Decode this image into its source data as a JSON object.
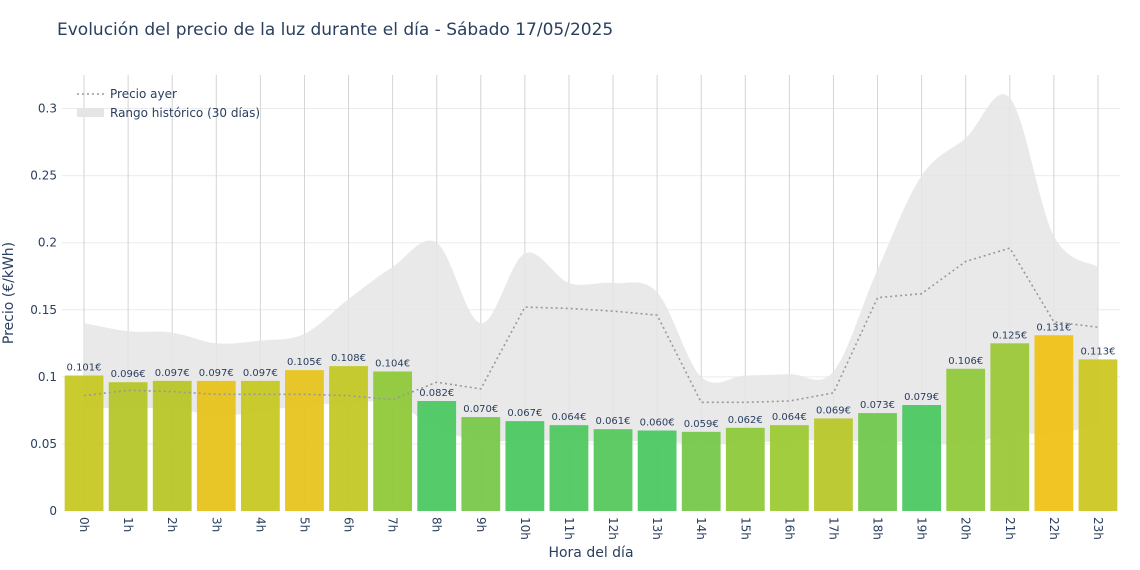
{
  "chart_data": {
    "type": "bar",
    "title": "Evolución del precio de la luz durante el día - Sábado 17/05/2025",
    "xlabel": "Hora del día",
    "ylabel": "Precio (€/kWh)",
    "ylim": [
      0,
      0.325
    ],
    "yticks": [
      0,
      0.05,
      0.1,
      0.15,
      0.2,
      0.25,
      0.3
    ],
    "ytick_labels": [
      "0",
      "0.05",
      "0.1",
      "0.15",
      "0.2",
      "0.25",
      "0.3"
    ],
    "grid": true,
    "legend_position": "top-left",
    "categories": [
      "0h",
      "1h",
      "2h",
      "3h",
      "4h",
      "5h",
      "6h",
      "7h",
      "8h",
      "9h",
      "10h",
      "11h",
      "12h",
      "13h",
      "14h",
      "15h",
      "16h",
      "17h",
      "18h",
      "19h",
      "20h",
      "21h",
      "22h",
      "23h"
    ],
    "series": [
      {
        "type": "bar",
        "values": [
          0.101,
          0.096,
          0.097,
          0.097,
          0.097,
          0.105,
          0.108,
          0.104,
          0.082,
          0.07,
          0.067,
          0.064,
          0.061,
          0.06,
          0.059,
          0.062,
          0.064,
          0.069,
          0.073,
          0.079,
          0.106,
          0.125,
          0.131,
          0.113
        ],
        "labels": [
          "0.101€",
          "0.096€",
          "0.097€",
          "0.097€",
          "0.097€",
          "0.105€",
          "0.108€",
          "0.104€",
          "0.082€",
          "0.070€",
          "0.067€",
          "0.064€",
          "0.061€",
          "0.060€",
          "0.059€",
          "0.062€",
          "0.064€",
          "0.069€",
          "0.073€",
          "0.079€",
          "0.106€",
          "0.125€",
          "0.131€",
          "0.113€"
        ],
        "colors": [
          "#c6c824",
          "#b4c62a",
          "#b8c628",
          "#e8c31c",
          "#c6c824",
          "#e6c41e",
          "#c2c826",
          "#90c93a",
          "#4cc862",
          "#78c84a",
          "#4cc862",
          "#50c860",
          "#56c85c",
          "#4cc862",
          "#76c84c",
          "#8ec93c",
          "#9cca34",
          "#b8c72a",
          "#72c84e",
          "#4cc862",
          "#90c93c",
          "#9cc838",
          "#f0c218",
          "#ccc824"
        ]
      },
      {
        "name": "Precio ayer",
        "type": "line",
        "color": "#999999",
        "values": [
          0.086,
          0.09,
          0.089,
          0.087,
          0.087,
          0.087,
          0.086,
          0.083,
          0.096,
          0.091,
          0.152,
          0.151,
          0.149,
          0.146,
          0.081,
          0.081,
          0.082,
          0.088,
          0.159,
          0.162,
          0.186,
          0.196,
          0.141,
          0.137
        ]
      },
      {
        "name": "Rango histórico (30 días)",
        "type": "area",
        "color": "#e5e5e5",
        "upper": [
          0.14,
          0.134,
          0.133,
          0.125,
          0.127,
          0.132,
          0.158,
          0.182,
          0.2,
          0.14,
          0.192,
          0.17,
          0.17,
          0.163,
          0.1,
          0.101,
          0.102,
          0.104,
          0.18,
          0.25,
          0.278,
          0.308,
          0.205,
          0.182
        ],
        "lower": [
          0.078,
          0.076,
          0.077,
          0.071,
          0.074,
          0.079,
          0.08,
          0.081,
          0.062,
          0.052,
          0.053,
          0.052,
          0.052,
          0.052,
          0.05,
          0.051,
          0.052,
          0.053,
          0.051,
          0.052,
          0.049,
          0.058,
          0.057,
          0.065
        ]
      }
    ]
  }
}
